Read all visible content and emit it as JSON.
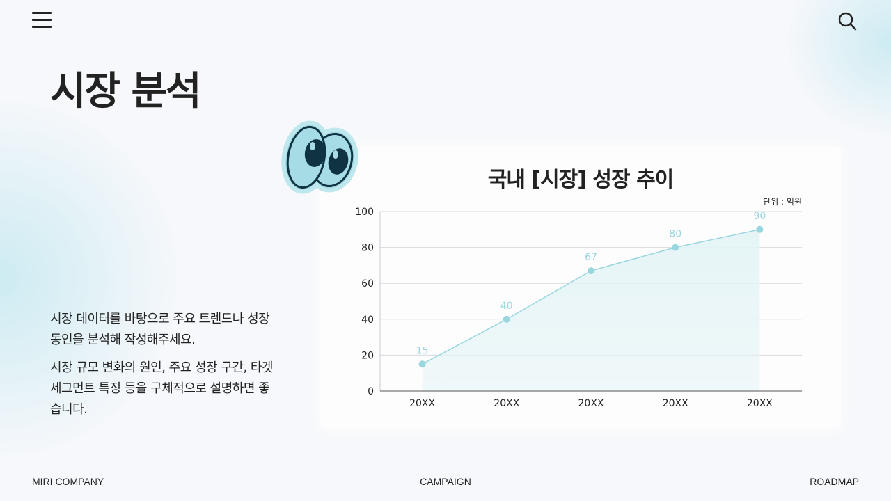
{
  "header": {
    "menu_icon": "hamburger-menu-icon",
    "search_icon": "search-icon"
  },
  "page": {
    "title": "시장 분석",
    "description": [
      "시장 데이터를 바탕으로 주요 트렌드나 성장 동인을 분석해 작성해주세요.",
      "시장 규모 변화의 원인, 주요 성장 구간, 타겟 세그먼트 특징 등을 구체적으로 설명하면 좋습니다."
    ]
  },
  "decoration": {
    "icon": "cartoon-eyes-icon",
    "colors": {
      "fill": "#9fd7e2",
      "outline": "#0f3340"
    }
  },
  "chart_data": {
    "type": "line",
    "title": "국내 [시장] 성장 추이",
    "unit": "단위 : 억원",
    "categories": [
      "20XX",
      "20XX",
      "20XX",
      "20XX",
      "20XX"
    ],
    "values": [
      15,
      40,
      67,
      80,
      90
    ],
    "ylim": [
      0,
      100
    ],
    "yticks": [
      "0",
      "20",
      "40",
      "60",
      "80",
      "100"
    ],
    "grid": true,
    "fill_area": true,
    "colors": {
      "line": "#9ad6de",
      "point": "#9ad6de",
      "label": "#9ad6de",
      "area": "#e4f4f6"
    }
  },
  "footer": {
    "left": "MIRI COMPANY",
    "center": "CAMPAIGN",
    "right": "ROADMAP"
  }
}
